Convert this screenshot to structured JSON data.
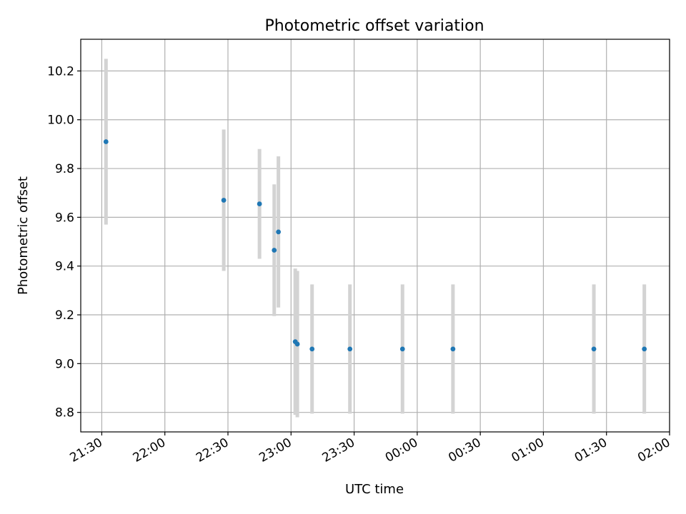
{
  "chart_data": {
    "type": "scatter",
    "title": "Photometric offset variation",
    "xlabel": "UTC time",
    "ylabel": "Photometric offset",
    "x_ticks": [
      "21:30",
      "22:00",
      "22:30",
      "23:00",
      "23:30",
      "00:00",
      "00:30",
      "01:00",
      "01:30",
      "02:00"
    ],
    "y_ticks": [
      8.8,
      9.0,
      9.2,
      9.4,
      9.6,
      9.8,
      10.0,
      10.2
    ],
    "xlim": [
      "21:20",
      "02:00"
    ],
    "ylim": [
      8.72,
      10.33
    ],
    "grid": true,
    "series": [
      {
        "marker_color": "#1f77b4",
        "errorbar_color": "#d3d3d3",
        "points": [
          {
            "x": "21:32",
            "y": 9.91,
            "yerr": 0.34
          },
          {
            "x": "22:28",
            "y": 9.67,
            "yerr": 0.29
          },
          {
            "x": "22:45",
            "y": 9.655,
            "yerr": 0.225
          },
          {
            "x": "22:52",
            "y": 9.465,
            "yerr": 0.27
          },
          {
            "x": "22:54",
            "y": 9.54,
            "yerr": 0.31
          },
          {
            "x": "23:02",
            "y": 9.09,
            "yerr": 0.3
          },
          {
            "x": "23:03",
            "y": 9.08,
            "yerr": 0.3
          },
          {
            "x": "23:10",
            "y": 9.06,
            "yerr": 0.265
          },
          {
            "x": "23:28",
            "y": 9.06,
            "yerr": 0.265
          },
          {
            "x": "23:53",
            "y": 9.06,
            "yerr": 0.265
          },
          {
            "x": "00:17",
            "y": 9.06,
            "yerr": 0.265
          },
          {
            "x": "01:24",
            "y": 9.06,
            "yerr": 0.265
          },
          {
            "x": "01:48",
            "y": 9.06,
            "yerr": 0.265
          }
        ]
      }
    ]
  }
}
